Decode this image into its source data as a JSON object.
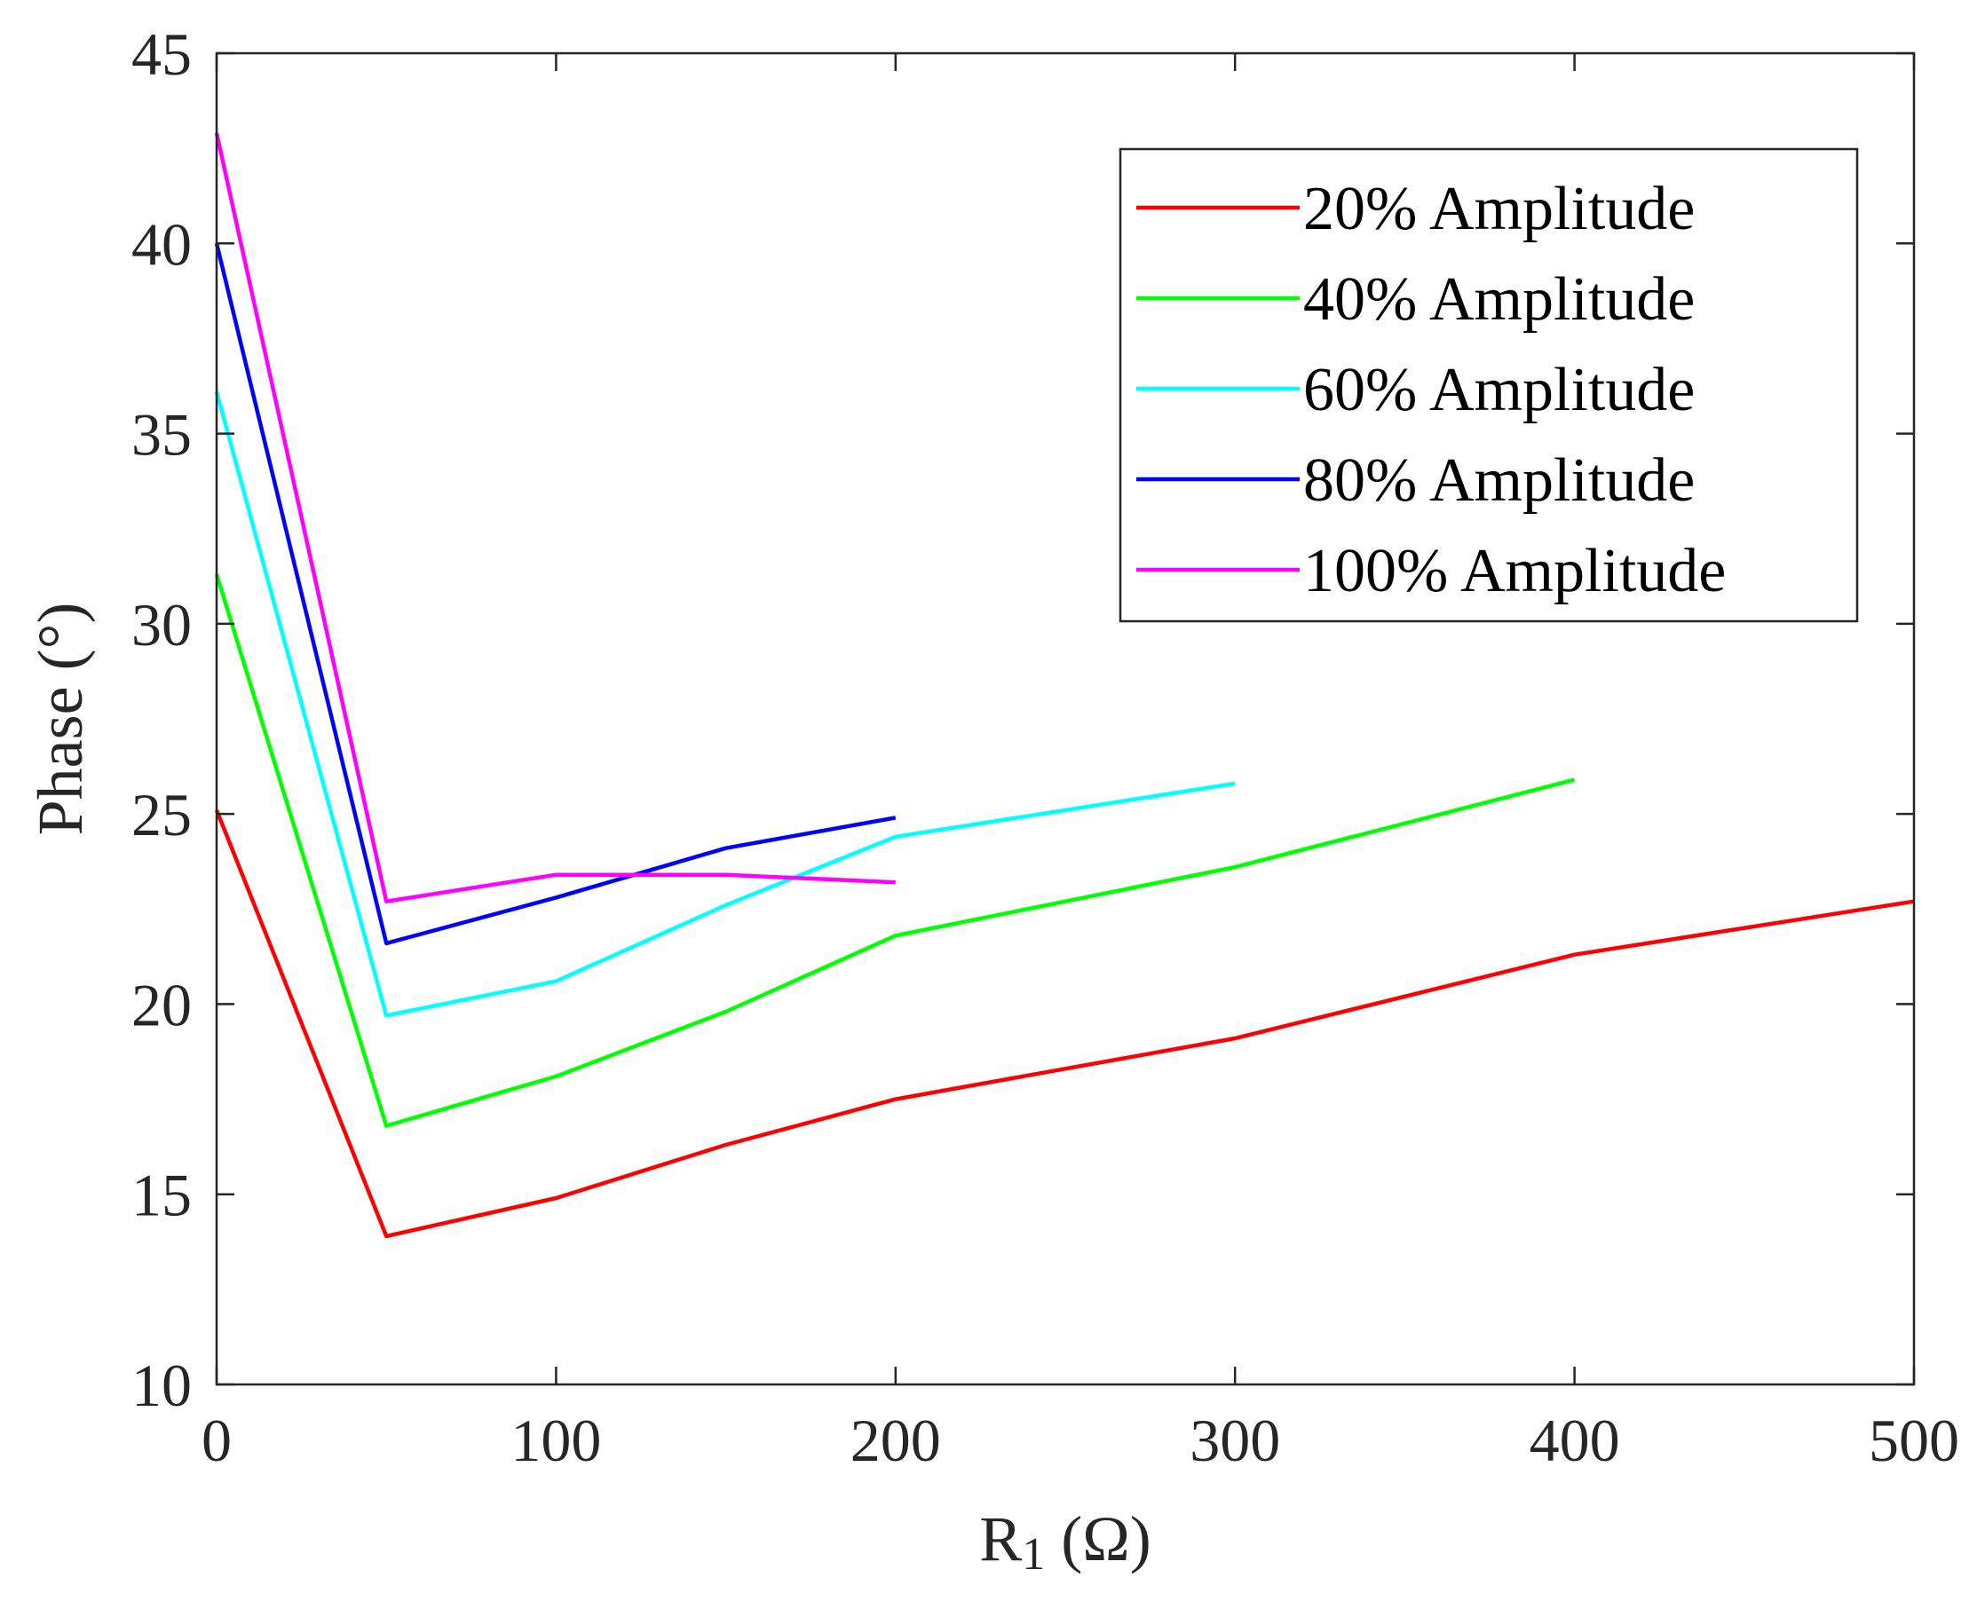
{
  "chart_data": {
    "type": "line",
    "title": "",
    "xlabel": "R",
    "xlabel_subscript": "1",
    "xlabel_suffix": " (Ω)",
    "ylabel": "Phase (°)",
    "xlim": [
      0,
      500
    ],
    "ylim": [
      10,
      45
    ],
    "xticks": [
      0,
      100,
      200,
      300,
      400,
      500
    ],
    "xtick_labels": [
      "0",
      "100",
      "200",
      "300",
      "400",
      "500"
    ],
    "yticks": [
      10,
      15,
      20,
      25,
      30,
      35,
      40,
      45
    ],
    "ytick_labels": [
      "10",
      "15",
      "20",
      "25",
      "30",
      "35",
      "40",
      "45"
    ],
    "grid": false,
    "legend_position": "top-right",
    "series": [
      {
        "name": "20% Amplitude",
        "color": "#ff0000",
        "x": [
          0,
          50,
          100,
          150,
          200,
          300,
          400,
          500
        ],
        "values": [
          25.1,
          13.9,
          14.9,
          16.3,
          17.5,
          19.1,
          21.3,
          22.7
        ]
      },
      {
        "name": "40% Amplitude",
        "color": "#00ff00",
        "x": [
          0,
          50,
          100,
          150,
          200,
          300,
          400
        ],
        "values": [
          31.3,
          16.8,
          18.1,
          19.8,
          21.8,
          23.6,
          25.9
        ]
      },
      {
        "name": "60% Amplitude",
        "color": "#00ffff",
        "x": [
          0,
          50,
          100,
          150,
          200,
          300
        ],
        "values": [
          36.1,
          19.7,
          20.6,
          22.6,
          24.4,
          25.8
        ]
      },
      {
        "name": "80% Amplitude",
        "color": "#0000ff",
        "x": [
          0,
          50,
          100,
          150,
          200
        ],
        "values": [
          40.0,
          21.6,
          22.8,
          24.1,
          24.9
        ]
      },
      {
        "name": "100% Amplitude",
        "color": "#ff00ff",
        "x": [
          0,
          50,
          100,
          150,
          200
        ],
        "values": [
          42.9,
          22.7,
          23.4,
          23.4,
          23.2
        ]
      }
    ]
  }
}
